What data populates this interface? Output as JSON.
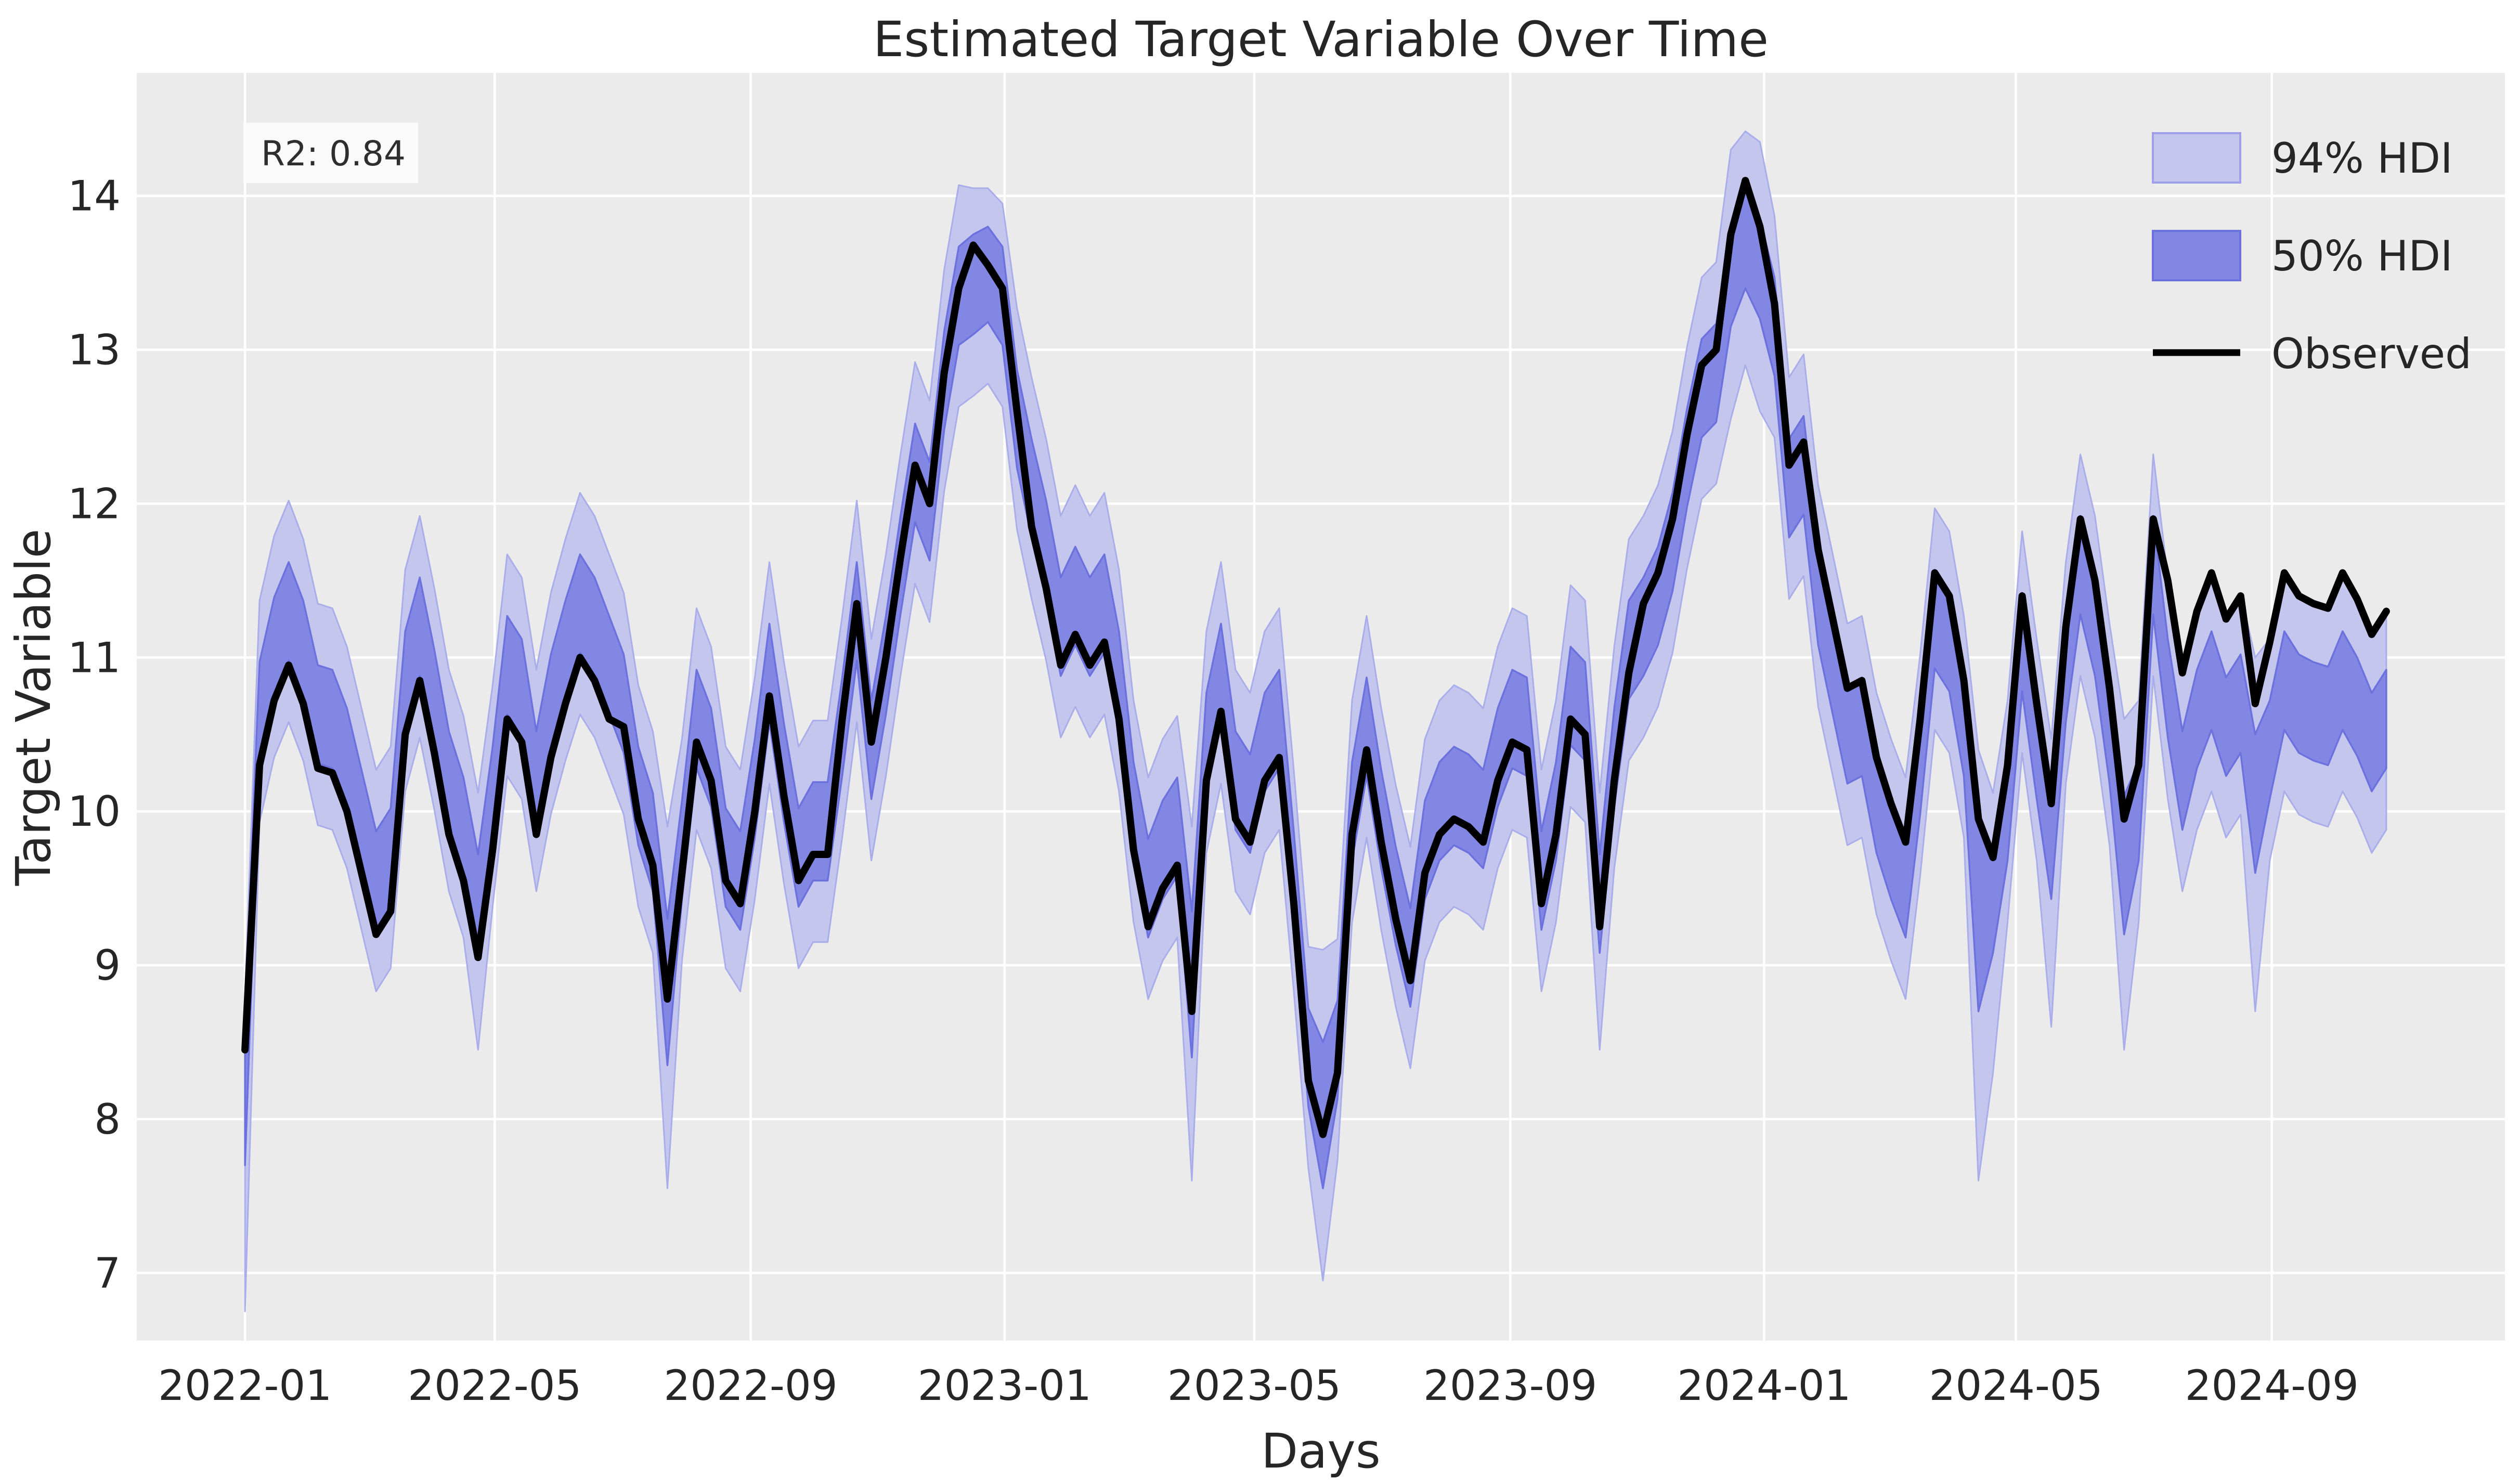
{
  "figure": {
    "title": "Estimated Target Variable Over Time",
    "xlabel": "Days",
    "ylabel": "Target Variable",
    "annotation": "R2: 0.84",
    "plot_background": "#ebebeb",
    "grid_color": "#ffffff",
    "text_color": "#262626",
    "observed_color": "#000000",
    "hdi94_fill": "#c4c6ee",
    "hdi94_edge": "#a9ade9",
    "hdi50_fill": "#8287e3",
    "hdi50_edge": "#6b71dd",
    "annotation_box_fill": "#fafafa"
  },
  "legend": {
    "items": [
      {
        "label": "94% HDI",
        "type": "patch",
        "fill": "#c4c6ee",
        "stroke": "#9ca1e8"
      },
      {
        "label": "50% HDI",
        "type": "patch",
        "fill": "#8287e3",
        "stroke": "#6b71dd"
      },
      {
        "label": "Observed",
        "type": "line",
        "stroke": "#000000"
      }
    ]
  },
  "chart_data": {
    "type": "line",
    "title": "Estimated Target Variable Over Time",
    "xlabel": "Days",
    "ylabel": "Target Variable",
    "annotation": "R2: 0.84",
    "legend_position": "upper right",
    "grid": true,
    "x_start_date": "2022-01-01",
    "sample_interval_days": 7,
    "xlim_days": [
      -52,
      1086
    ],
    "ylim": [
      6.56,
      14.8
    ],
    "x_ticks": [
      {
        "label": "2022-01",
        "day": 0
      },
      {
        "label": "2022-05",
        "day": 120
      },
      {
        "label": "2022-09",
        "day": 243
      },
      {
        "label": "2023-01",
        "day": 365
      },
      {
        "label": "2023-05",
        "day": 485
      },
      {
        "label": "2023-09",
        "day": 608
      },
      {
        "label": "2024-01",
        "day": 730
      },
      {
        "label": "2024-05",
        "day": 851
      },
      {
        "label": "2024-09",
        "day": 974
      }
    ],
    "y_ticks": [
      7,
      8,
      9,
      10,
      11,
      12,
      13,
      14
    ],
    "series": [
      {
        "name": "Observed",
        "type": "line",
        "color": "#000000",
        "values": [
          8.45,
          10.3,
          10.72,
          10.95,
          10.7,
          10.28,
          10.25,
          10.0,
          9.6,
          9.2,
          9.35,
          10.5,
          10.85,
          10.38,
          9.85,
          9.55,
          9.05,
          9.75,
          10.6,
          10.45,
          9.85,
          10.35,
          10.7,
          11.0,
          10.85,
          10.6,
          10.55,
          9.95,
          9.65,
          8.78,
          9.6,
          10.45,
          10.2,
          9.55,
          9.4,
          10.0,
          10.75,
          10.1,
          9.55,
          9.72,
          9.72,
          10.6,
          11.35,
          10.45,
          11.0,
          11.65,
          12.25,
          12.0,
          12.85,
          13.4,
          13.68,
          13.55,
          13.4,
          12.6,
          11.85,
          11.45,
          10.95,
          11.15,
          10.95,
          11.1,
          10.6,
          9.75,
          9.25,
          9.5,
          9.65,
          8.7,
          10.2,
          10.65,
          9.95,
          9.8,
          10.2,
          10.35,
          9.4,
          8.25,
          7.9,
          8.3,
          9.85,
          10.4,
          9.8,
          9.3,
          8.9,
          9.6,
          9.85,
          9.95,
          9.9,
          9.8,
          10.2,
          10.45,
          10.4,
          9.4,
          9.85,
          10.6,
          10.5,
          9.25,
          10.2,
          10.9,
          11.35,
          11.55,
          11.9,
          12.45,
          12.9,
          13.0,
          13.75,
          14.1,
          13.8,
          13.3,
          12.25,
          12.4,
          11.7,
          11.25,
          10.8,
          10.85,
          10.35,
          10.05,
          9.8,
          10.6,
          11.55,
          11.4,
          10.85,
          9.95,
          9.7,
          10.3,
          11.4,
          10.7,
          10.05,
          11.2,
          11.9,
          11.5,
          10.8,
          9.95,
          10.3,
          11.9,
          11.5,
          10.9,
          11.3,
          11.55,
          11.25,
          11.4,
          10.7,
          11.1,
          11.55,
          11.4,
          11.35,
          11.32,
          11.55,
          11.38,
          11.15,
          11.3
        ]
      },
      {
        "name": "50% HDI",
        "type": "band",
        "fill": "#8287e3",
        "edge": "#6b71dd",
        "lower": [
          7.7,
          10.33,
          10.75,
          10.98,
          10.73,
          10.31,
          10.28,
          10.03,
          9.63,
          9.23,
          9.38,
          10.53,
          10.88,
          10.41,
          9.88,
          9.58,
          9.08,
          9.78,
          10.63,
          10.48,
          9.88,
          10.38,
          10.73,
          11.03,
          10.88,
          10.63,
          10.38,
          9.78,
          9.48,
          8.35,
          9.43,
          10.28,
          10.03,
          9.38,
          9.23,
          9.83,
          10.58,
          9.93,
          9.38,
          9.55,
          9.55,
          10.23,
          10.98,
          10.08,
          10.63,
          11.28,
          11.88,
          11.63,
          12.48,
          13.03,
          13.1,
          13.18,
          13.03,
          12.23,
          11.78,
          11.38,
          10.88,
          11.08,
          10.88,
          11.03,
          10.53,
          9.68,
          9.18,
          9.43,
          9.58,
          8.4,
          10.13,
          10.58,
          9.88,
          9.73,
          10.13,
          10.28,
          9.23,
          8.08,
          7.55,
          8.13,
          9.68,
          10.23,
          9.63,
          9.13,
          8.73,
          9.43,
          9.68,
          9.78,
          9.73,
          9.63,
          10.03,
          10.28,
          10.23,
          9.23,
          9.68,
          10.43,
          10.33,
          9.08,
          10.03,
          10.73,
          10.88,
          11.08,
          11.43,
          11.98,
          12.43,
          12.53,
          13.15,
          13.4,
          13.2,
          12.83,
          11.78,
          11.93,
          11.08,
          10.63,
          10.18,
          10.23,
          9.73,
          9.43,
          9.18,
          9.98,
          10.93,
          10.78,
          10.23,
          8.7,
          9.08,
          9.68,
          10.78,
          10.08,
          9.43,
          10.58,
          11.28,
          10.88,
          10.18,
          9.2,
          9.68,
          11.28,
          10.48,
          9.88,
          10.28,
          10.53,
          10.23,
          10.38,
          9.6,
          10.08,
          10.53,
          10.38,
          10.33,
          10.3,
          10.53,
          10.36,
          10.13,
          10.28
        ],
        "upper": [
          8.65,
          10.97,
          11.39,
          11.62,
          11.37,
          10.95,
          10.92,
          10.67,
          10.27,
          9.87,
          10.02,
          11.17,
          11.52,
          11.05,
          10.52,
          10.22,
          9.72,
          10.42,
          11.27,
          11.12,
          10.52,
          11.02,
          11.37,
          11.67,
          11.52,
          11.27,
          11.02,
          10.42,
          10.12,
          9.3,
          10.07,
          10.92,
          10.67,
          10.02,
          9.87,
          10.47,
          11.22,
          10.57,
          10.02,
          10.19,
          10.19,
          10.87,
          11.62,
          10.72,
          11.27,
          11.92,
          12.52,
          12.27,
          13.12,
          13.67,
          13.75,
          13.8,
          13.67,
          12.87,
          12.42,
          12.02,
          11.52,
          11.72,
          11.52,
          11.67,
          11.17,
          10.32,
          9.82,
          10.07,
          10.22,
          9.35,
          10.77,
          11.22,
          10.52,
          10.37,
          10.77,
          10.92,
          9.87,
          8.72,
          8.5,
          8.77,
          10.32,
          10.87,
          10.27,
          9.77,
          9.37,
          10.07,
          10.32,
          10.42,
          10.37,
          10.27,
          10.67,
          10.92,
          10.87,
          9.87,
          10.32,
          11.07,
          10.97,
          9.72,
          10.67,
          11.37,
          11.52,
          11.72,
          12.07,
          12.62,
          13.07,
          13.17,
          13.8,
          14.1,
          13.85,
          13.47,
          12.42,
          12.57,
          11.72,
          11.27,
          10.82,
          10.87,
          10.37,
          10.07,
          9.82,
          10.62,
          11.57,
          11.42,
          10.87,
          9.9,
          9.72,
          10.32,
          11.42,
          10.72,
          10.07,
          11.22,
          11.92,
          11.52,
          10.82,
          10.1,
          10.32,
          11.92,
          11.12,
          10.52,
          10.92,
          11.17,
          10.87,
          11.02,
          10.5,
          10.72,
          11.17,
          11.02,
          10.97,
          10.94,
          11.17,
          11.0,
          10.77,
          10.92
        ]
      },
      {
        "name": "94% HDI",
        "type": "band",
        "fill": "#c4c6ee",
        "edge": "#a9ade9",
        "lower": [
          6.75,
          9.93,
          10.35,
          10.58,
          10.33,
          9.91,
          9.88,
          9.63,
          9.23,
          8.83,
          8.98,
          10.13,
          10.48,
          10.01,
          9.48,
          9.18,
          8.45,
          9.38,
          10.23,
          10.08,
          9.48,
          9.98,
          10.33,
          10.63,
          10.48,
          10.23,
          9.98,
          9.38,
          9.08,
          7.55,
          9.03,
          9.88,
          9.63,
          8.98,
          8.83,
          9.43,
          10.18,
          9.53,
          8.98,
          9.15,
          9.15,
          9.83,
          10.58,
          9.68,
          10.23,
          10.88,
          11.48,
          11.23,
          12.08,
          12.63,
          12.7,
          12.78,
          12.63,
          11.83,
          11.38,
          10.98,
          10.48,
          10.68,
          10.48,
          10.63,
          10.13,
          9.28,
          8.78,
          9.03,
          9.18,
          7.6,
          9.73,
          10.18,
          9.48,
          9.33,
          9.73,
          9.88,
          8.83,
          7.68,
          6.95,
          7.73,
          9.28,
          9.83,
          9.23,
          8.73,
          8.33,
          9.03,
          9.28,
          9.38,
          9.33,
          9.23,
          9.63,
          9.88,
          9.83,
          8.83,
          9.28,
          10.03,
          9.93,
          8.45,
          9.63,
          10.33,
          10.48,
          10.68,
          11.03,
          11.58,
          12.03,
          12.13,
          12.55,
          12.9,
          12.6,
          12.43,
          11.38,
          11.53,
          10.68,
          10.23,
          9.78,
          9.83,
          9.33,
          9.03,
          8.78,
          9.58,
          10.53,
          10.38,
          9.83,
          7.6,
          8.3,
          9.28,
          10.38,
          9.68,
          8.6,
          10.18,
          10.88,
          10.48,
          9.78,
          8.45,
          9.28,
          10.88,
          10.08,
          9.48,
          9.88,
          10.13,
          9.83,
          9.98,
          8.7,
          9.68,
          10.13,
          9.98,
          9.93,
          9.9,
          10.13,
          9.96,
          9.73,
          9.88
        ],
        "upper": [
          8.8,
          11.37,
          11.79,
          12.02,
          11.77,
          11.35,
          11.32,
          11.07,
          10.67,
          10.27,
          10.42,
          11.57,
          11.92,
          11.45,
          10.92,
          10.62,
          10.12,
          10.82,
          11.67,
          11.52,
          10.92,
          11.42,
          11.77,
          12.07,
          11.92,
          11.67,
          11.42,
          10.82,
          10.52,
          9.9,
          10.47,
          11.32,
          11.07,
          10.42,
          10.27,
          10.87,
          11.62,
          10.97,
          10.42,
          10.59,
          10.59,
          11.27,
          12.02,
          11.12,
          11.67,
          12.32,
          12.92,
          12.67,
          13.52,
          14.07,
          14.05,
          14.05,
          13.95,
          13.27,
          12.82,
          12.42,
          11.92,
          12.12,
          11.92,
          12.07,
          11.57,
          10.72,
          10.22,
          10.47,
          10.62,
          9.9,
          11.17,
          11.62,
          10.92,
          10.77,
          11.17,
          11.32,
          10.27,
          9.12,
          9.1,
          9.17,
          10.72,
          11.27,
          10.67,
          10.17,
          9.77,
          10.47,
          10.72,
          10.82,
          10.77,
          10.67,
          11.07,
          11.32,
          11.27,
          10.27,
          10.72,
          11.47,
          11.37,
          10.12,
          11.07,
          11.77,
          11.92,
          12.12,
          12.47,
          13.02,
          13.47,
          13.57,
          14.3,
          14.42,
          14.35,
          13.87,
          12.82,
          12.97,
          12.12,
          11.67,
          11.22,
          11.27,
          10.77,
          10.47,
          10.22,
          11.02,
          11.97,
          11.82,
          11.27,
          10.4,
          10.12,
          10.72,
          11.82,
          11.12,
          10.47,
          11.62,
          12.32,
          11.92,
          11.22,
          10.6,
          10.72,
          12.32,
          11.52,
          10.92,
          11.32,
          11.57,
          11.27,
          11.42,
          11.0,
          11.12,
          11.57,
          11.42,
          11.37,
          11.34,
          11.57,
          11.4,
          11.17,
          11.32
        ]
      }
    ]
  }
}
